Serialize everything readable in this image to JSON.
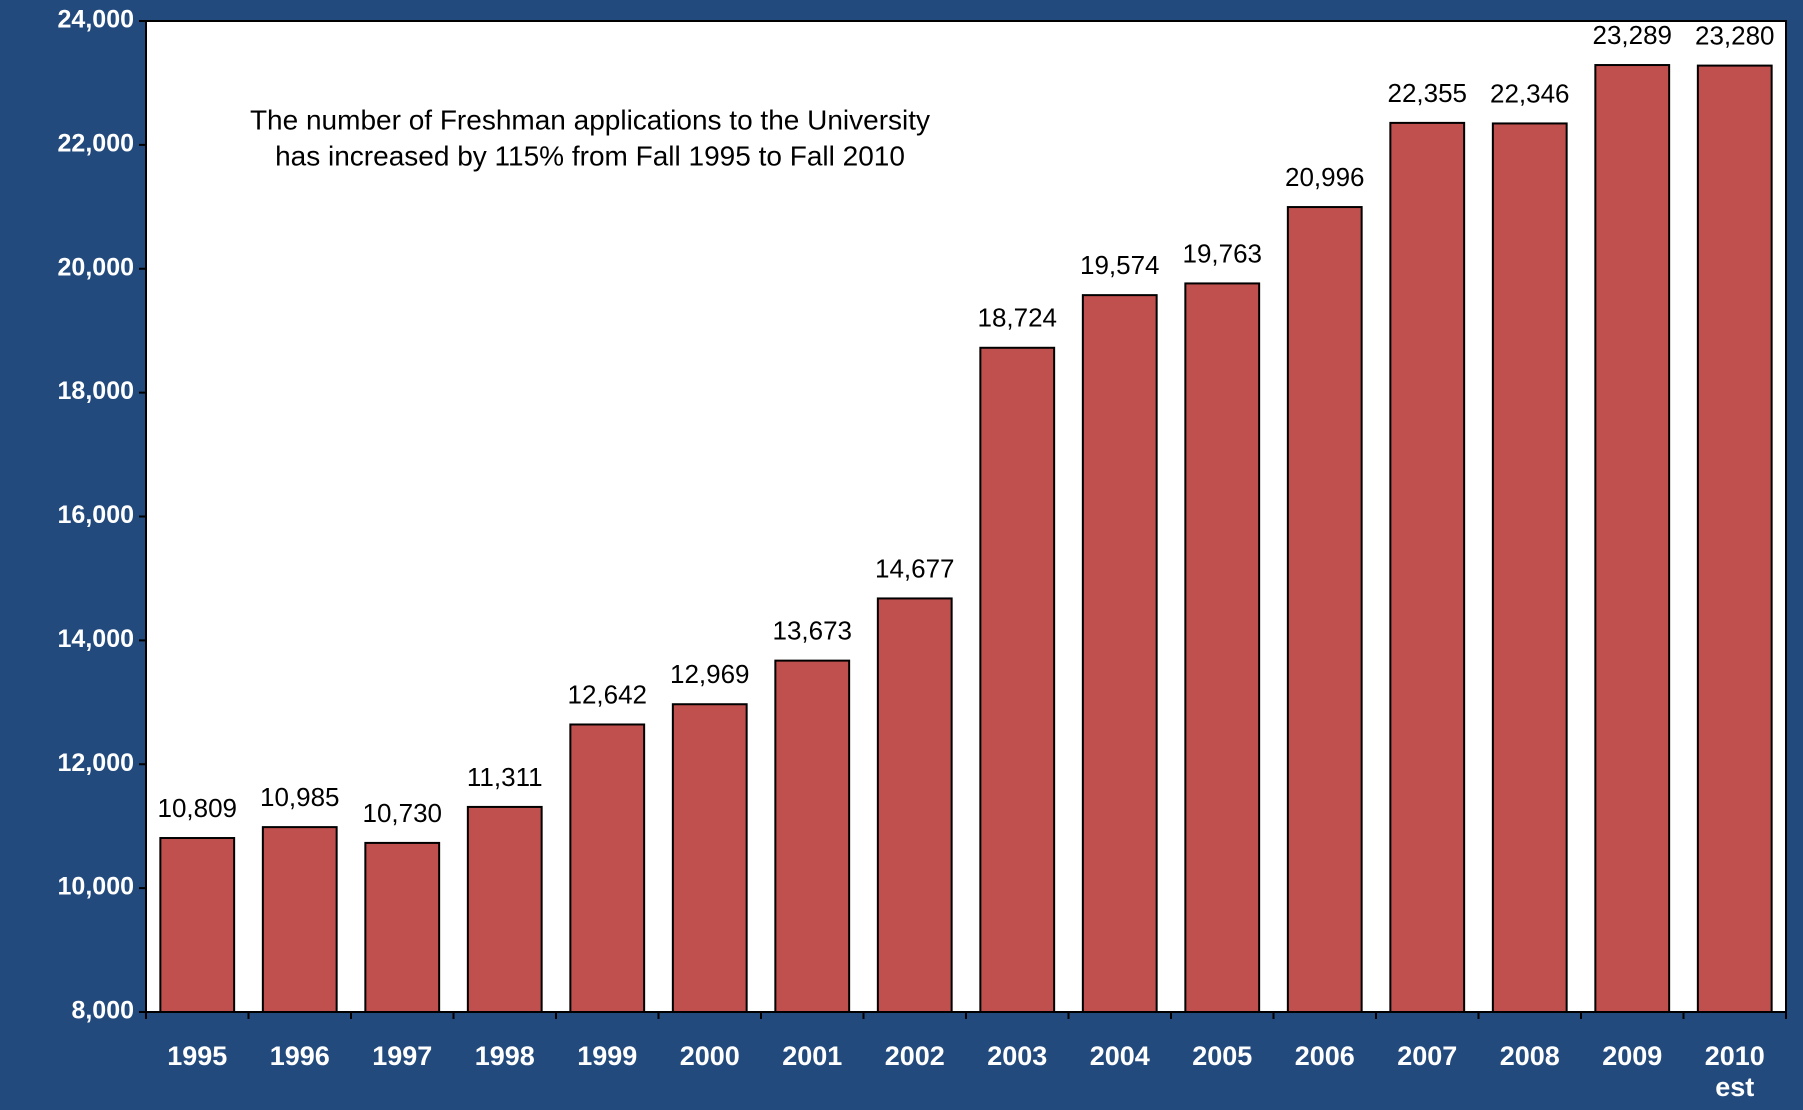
{
  "chart_data": {
    "type": "bar",
    "annotation": [
      "The number of Freshman applications to the University",
      "has increased by 115% from Fall 1995 to Fall 2010"
    ],
    "categories": [
      "1995",
      "1996",
      "1997",
      "1998",
      "1999",
      "2000",
      "2001",
      "2002",
      "2003",
      "2004",
      "2005",
      "2006",
      "2007",
      "2008",
      "2009",
      "2010\nest"
    ],
    "values": [
      10809,
      10985,
      10730,
      11311,
      12642,
      12969,
      13673,
      14677,
      18724,
      19574,
      19763,
      20996,
      22355,
      22346,
      23289,
      23280
    ],
    "value_labels": [
      "10,809",
      "10,985",
      "10,730",
      "11,311",
      "12,642",
      "12,969",
      "13,673",
      "14,677",
      "18,724",
      "19,574",
      "19,763",
      "20,996",
      "22,355",
      "22,346",
      "23,289",
      "23,280"
    ],
    "color": "#c0504d",
    "ylim": [
      8000,
      24000
    ],
    "yticks": [
      {
        "value": 8000,
        "label": "8,000"
      },
      {
        "value": 10000,
        "label": "10,000"
      },
      {
        "value": 12000,
        "label": "12,000"
      },
      {
        "value": 14000,
        "label": "14,000"
      },
      {
        "value": 16000,
        "label": "16,000"
      },
      {
        "value": 18000,
        "label": "18,000"
      },
      {
        "value": 20000,
        "label": "20,000"
      },
      {
        "value": 22000,
        "label": "22,000"
      },
      {
        "value": 24000,
        "label": "24,000"
      }
    ],
    "grid": false
  }
}
